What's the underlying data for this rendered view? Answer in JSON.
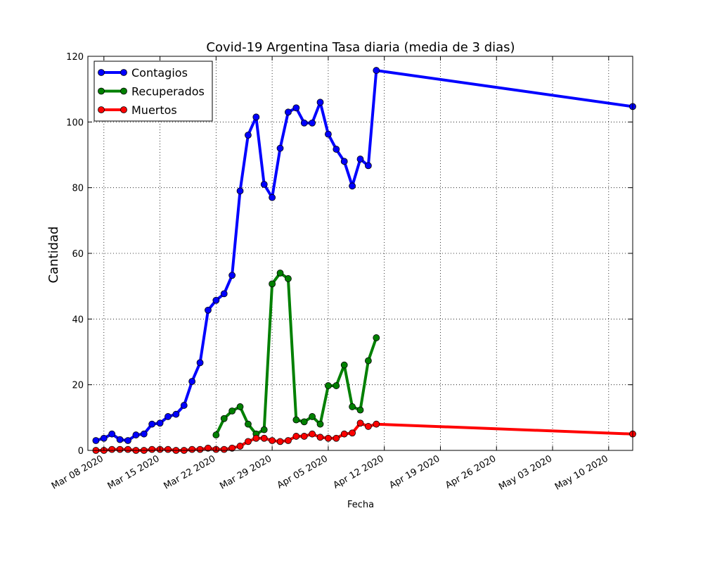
{
  "chart_data": {
    "type": "line",
    "title": "Covid-19 Argentina Tasa diaria (media de 3 dias)",
    "xlabel": "Fecha",
    "ylabel": "Cantidad",
    "ylim": [
      0,
      120
    ],
    "xlim": [
      "2020-03-06",
      "2020-05-13"
    ],
    "yticks": [
      0,
      20,
      40,
      60,
      80,
      100,
      120
    ],
    "xticks": [
      {
        "date": "2020-03-08",
        "label": "Mar 08 2020"
      },
      {
        "date": "2020-03-15",
        "label": "Mar 15 2020"
      },
      {
        "date": "2020-03-22",
        "label": "Mar 22 2020"
      },
      {
        "date": "2020-03-29",
        "label": "Mar 29 2020"
      },
      {
        "date": "2020-04-05",
        "label": "Apr 05 2020"
      },
      {
        "date": "2020-04-12",
        "label": "Apr 12 2020"
      },
      {
        "date": "2020-04-19",
        "label": "Apr 19 2020"
      },
      {
        "date": "2020-04-26",
        "label": "Apr 26 2020"
      },
      {
        "date": "2020-05-03",
        "label": "May 03 2020"
      },
      {
        "date": "2020-05-10",
        "label": "May 10 2020"
      }
    ],
    "grid": true,
    "legend_position": "top-left",
    "series": [
      {
        "name": "Contagios",
        "color": "#0000ff",
        "points": [
          [
            "2020-03-07",
            3
          ],
          [
            "2020-03-08",
            3.7
          ],
          [
            "2020-03-09",
            5
          ],
          [
            "2020-03-10",
            3.3
          ],
          [
            "2020-03-11",
            3
          ],
          [
            "2020-03-12",
            4.7
          ],
          [
            "2020-03-13",
            5
          ],
          [
            "2020-03-14",
            8
          ],
          [
            "2020-03-15",
            8.3
          ],
          [
            "2020-03-16",
            10.3
          ],
          [
            "2020-03-17",
            11
          ],
          [
            "2020-03-18",
            13.7
          ],
          [
            "2020-03-19",
            21
          ],
          [
            "2020-03-20",
            26.7
          ],
          [
            "2020-03-21",
            42.7
          ],
          [
            "2020-03-22",
            45.7
          ],
          [
            "2020-03-23",
            47.7
          ],
          [
            "2020-03-24",
            53.3
          ],
          [
            "2020-03-25",
            79
          ],
          [
            "2020-03-26",
            96
          ],
          [
            "2020-03-27",
            101.5
          ],
          [
            "2020-03-28",
            81
          ],
          [
            "2020-03-29",
            77
          ],
          [
            "2020-03-30",
            92
          ],
          [
            "2020-03-31",
            103
          ],
          [
            "2020-04-01",
            104.3
          ],
          [
            "2020-04-02",
            99.7
          ],
          [
            "2020-04-03",
            99.7
          ],
          [
            "2020-04-04",
            106
          ],
          [
            "2020-04-05",
            96.3
          ],
          [
            "2020-04-06",
            91.7
          ],
          [
            "2020-04-07",
            88
          ],
          [
            "2020-04-08",
            80.5
          ],
          [
            "2020-04-09",
            88.7
          ],
          [
            "2020-04-10",
            86.7
          ],
          [
            "2020-04-11",
            115.7
          ],
          [
            "2020-05-13",
            104.7
          ]
        ]
      },
      {
        "name": "Recuperados",
        "color": "#008000",
        "points": [
          [
            "2020-03-22",
            4.7
          ],
          [
            "2020-03-23",
            9.7
          ],
          [
            "2020-03-24",
            12
          ],
          [
            "2020-03-25",
            13.3
          ],
          [
            "2020-03-26",
            8
          ],
          [
            "2020-03-27",
            5
          ],
          [
            "2020-03-28",
            6.3
          ],
          [
            "2020-03-29",
            50.7
          ],
          [
            "2020-03-30",
            54
          ],
          [
            "2020-03-31",
            52.3
          ],
          [
            "2020-04-01",
            9.3
          ],
          [
            "2020-04-02",
            8.7
          ],
          [
            "2020-04-03",
            10.3
          ],
          [
            "2020-04-04",
            8
          ],
          [
            "2020-04-05",
            19.7
          ],
          [
            "2020-04-06",
            19.7
          ],
          [
            "2020-04-07",
            26
          ],
          [
            "2020-04-08",
            13.3
          ],
          [
            "2020-04-09",
            12.3
          ],
          [
            "2020-04-10",
            27.3
          ],
          [
            "2020-04-11",
            34.3
          ]
        ]
      },
      {
        "name": "Muertos",
        "color": "#ff0000",
        "points": [
          [
            "2020-03-07",
            0
          ],
          [
            "2020-03-08",
            0
          ],
          [
            "2020-03-09",
            0.3
          ],
          [
            "2020-03-10",
            0.3
          ],
          [
            "2020-03-11",
            0.3
          ],
          [
            "2020-03-12",
            0
          ],
          [
            "2020-03-13",
            0
          ],
          [
            "2020-03-14",
            0.3
          ],
          [
            "2020-03-15",
            0.3
          ],
          [
            "2020-03-16",
            0.3
          ],
          [
            "2020-03-17",
            0
          ],
          [
            "2020-03-18",
            0
          ],
          [
            "2020-03-19",
            0.3
          ],
          [
            "2020-03-20",
            0.3
          ],
          [
            "2020-03-21",
            0.7
          ],
          [
            "2020-03-22",
            0.3
          ],
          [
            "2020-03-23",
            0.3
          ],
          [
            "2020-03-24",
            0.7
          ],
          [
            "2020-03-25",
            1.3
          ],
          [
            "2020-03-26",
            2.7
          ],
          [
            "2020-03-27",
            3.7
          ],
          [
            "2020-03-28",
            3.7
          ],
          [
            "2020-03-29",
            3
          ],
          [
            "2020-03-30",
            2.7
          ],
          [
            "2020-03-31",
            3
          ],
          [
            "2020-04-01",
            4.3
          ],
          [
            "2020-04-02",
            4.3
          ],
          [
            "2020-04-03",
            5
          ],
          [
            "2020-04-04",
            4
          ],
          [
            "2020-04-05",
            3.7
          ],
          [
            "2020-04-06",
            3.7
          ],
          [
            "2020-04-07",
            5
          ],
          [
            "2020-04-08",
            5.3
          ],
          [
            "2020-04-09",
            8.3
          ],
          [
            "2020-04-10",
            7.3
          ],
          [
            "2020-04-11",
            8
          ],
          [
            "2020-05-13",
            5
          ]
        ]
      }
    ]
  }
}
